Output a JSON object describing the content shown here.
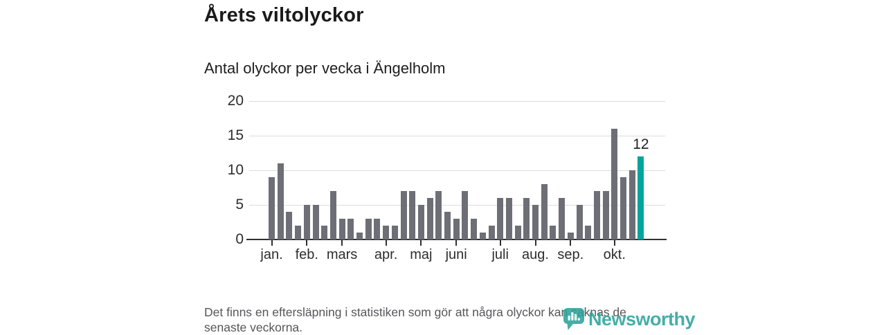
{
  "chart_data": {
    "type": "bar",
    "title": "Årets viltolyckor",
    "subtitle": "Antal olyckor per vecka i Ängelholm",
    "x_unit": "vecka",
    "values": [
      9,
      11,
      4,
      2,
      5,
      5,
      2,
      7,
      3,
      3,
      1,
      3,
      3,
      2,
      2,
      7,
      7,
      5,
      6,
      7,
      4,
      3,
      7,
      3,
      1,
      2,
      6,
      6,
      2,
      6,
      5,
      8,
      2,
      6,
      1,
      5,
      2,
      7,
      7,
      16,
      9,
      10,
      12
    ],
    "highlight_index": 42,
    "highlight_label": "12",
    "yticks": [
      0,
      5,
      10,
      15,
      20
    ],
    "ylim": [
      0,
      20
    ],
    "grid": true,
    "legend": false,
    "months": [
      {
        "label": "jan.",
        "week": 1
      },
      {
        "label": "feb.",
        "week": 5
      },
      {
        "label": "mars",
        "week": 9
      },
      {
        "label": "apr.",
        "week": 14
      },
      {
        "label": "maj",
        "week": 18
      },
      {
        "label": "juni",
        "week": 22
      },
      {
        "label": "juli",
        "week": 27
      },
      {
        "label": "aug.",
        "week": 31
      },
      {
        "label": "sep.",
        "week": 35
      },
      {
        "label": "okt.",
        "week": 40
      }
    ],
    "colors": {
      "bar": "#6e6e77",
      "highlight": "#00a59c",
      "grid": "#dcdcdc",
      "axis": "#303030"
    }
  },
  "footer": {
    "lines": [
      "Det finns en eftersläpning i statistiken som gör att några olyckor kan saknas de",
      "senaste veckorna."
    ]
  },
  "logo": {
    "text": "Newsworthy",
    "color": "#2aa39a",
    "icon": "newsworthy-pin-chart-icon"
  }
}
